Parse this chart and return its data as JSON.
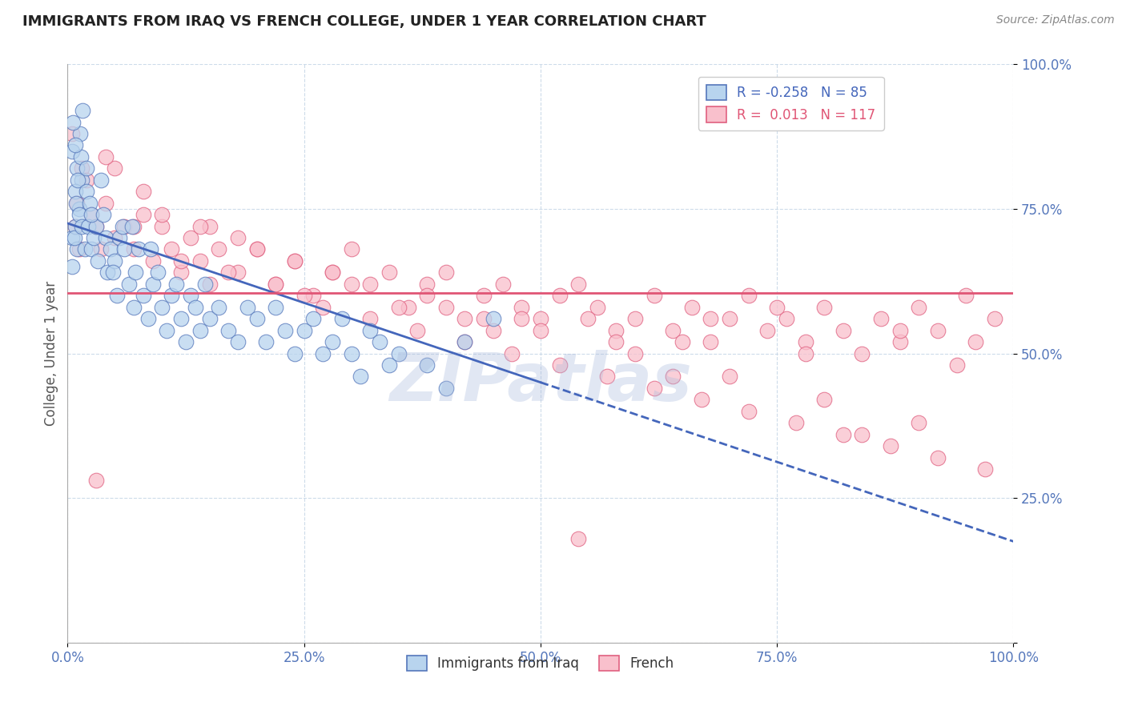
{
  "title": "IMMIGRANTS FROM IRAQ VS FRENCH COLLEGE, UNDER 1 YEAR CORRELATION CHART",
  "source_text": "Source: ZipAtlas.com",
  "ylabel": "College, Under 1 year",
  "legend_labels": [
    "Immigrants from Iraq",
    "French"
  ],
  "R_iraq": -0.258,
  "N_iraq": 85,
  "R_french": 0.013,
  "N_french": 117,
  "iraq_fill_color": "#b8d4ee",
  "iraq_edge_color": "#5577bb",
  "french_fill_color": "#f9c0cc",
  "french_edge_color": "#e06080",
  "iraq_line_color": "#4466bb",
  "french_line_color": "#e05575",
  "grid_color": "#c8d8e8",
  "title_color": "#222222",
  "source_color": "#888888",
  "tick_color": "#5577bb",
  "ylabel_color": "#555555",
  "watermark_color": "#aabbdd",
  "figsize": [
    14.06,
    8.92
  ],
  "dpi": 100,
  "xlim": [
    0.0,
    1.0
  ],
  "ylim": [
    0.0,
    1.0
  ],
  "iraq_scatter_x": [
    0.005,
    0.008,
    0.01,
    0.012,
    0.015,
    0.005,
    0.008,
    0.01,
    0.013,
    0.016,
    0.005,
    0.007,
    0.009,
    0.011,
    0.014,
    0.006,
    0.008,
    0.012,
    0.015,
    0.018,
    0.02,
    0.022,
    0.025,
    0.02,
    0.023,
    0.028,
    0.03,
    0.032,
    0.035,
    0.025,
    0.04,
    0.042,
    0.045,
    0.038,
    0.05,
    0.052,
    0.048,
    0.055,
    0.058,
    0.06,
    0.065,
    0.07,
    0.072,
    0.075,
    0.068,
    0.08,
    0.085,
    0.09,
    0.095,
    0.088,
    0.1,
    0.105,
    0.11,
    0.115,
    0.12,
    0.125,
    0.13,
    0.135,
    0.14,
    0.145,
    0.15,
    0.16,
    0.17,
    0.18,
    0.19,
    0.2,
    0.21,
    0.22,
    0.23,
    0.24,
    0.25,
    0.26,
    0.27,
    0.28,
    0.29,
    0.3,
    0.31,
    0.32,
    0.33,
    0.34,
    0.35,
    0.38,
    0.4,
    0.42,
    0.45
  ],
  "iraq_scatter_y": [
    0.7,
    0.72,
    0.68,
    0.75,
    0.8,
    0.85,
    0.78,
    0.82,
    0.88,
    0.92,
    0.65,
    0.7,
    0.76,
    0.8,
    0.84,
    0.9,
    0.86,
    0.74,
    0.72,
    0.68,
    0.78,
    0.72,
    0.68,
    0.82,
    0.76,
    0.7,
    0.72,
    0.66,
    0.8,
    0.74,
    0.7,
    0.64,
    0.68,
    0.74,
    0.66,
    0.6,
    0.64,
    0.7,
    0.72,
    0.68,
    0.62,
    0.58,
    0.64,
    0.68,
    0.72,
    0.6,
    0.56,
    0.62,
    0.64,
    0.68,
    0.58,
    0.54,
    0.6,
    0.62,
    0.56,
    0.52,
    0.6,
    0.58,
    0.54,
    0.62,
    0.56,
    0.58,
    0.54,
    0.52,
    0.58,
    0.56,
    0.52,
    0.58,
    0.54,
    0.5,
    0.54,
    0.56,
    0.5,
    0.52,
    0.56,
    0.5,
    0.46,
    0.54,
    0.52,
    0.48,
    0.5,
    0.48,
    0.44,
    0.52,
    0.56
  ],
  "french_scatter_x": [
    0.005,
    0.01,
    0.015,
    0.008,
    0.012,
    0.02,
    0.025,
    0.03,
    0.035,
    0.04,
    0.05,
    0.06,
    0.07,
    0.08,
    0.09,
    0.1,
    0.11,
    0.12,
    0.13,
    0.14,
    0.15,
    0.16,
    0.18,
    0.2,
    0.22,
    0.24,
    0.26,
    0.28,
    0.3,
    0.32,
    0.34,
    0.36,
    0.38,
    0.4,
    0.42,
    0.44,
    0.46,
    0.48,
    0.5,
    0.52,
    0.54,
    0.56,
    0.58,
    0.6,
    0.62,
    0.64,
    0.66,
    0.68,
    0.7,
    0.72,
    0.74,
    0.76,
    0.78,
    0.8,
    0.82,
    0.84,
    0.86,
    0.88,
    0.9,
    0.92,
    0.94,
    0.96,
    0.98,
    0.15,
    0.25,
    0.35,
    0.45,
    0.55,
    0.65,
    0.75,
    0.08,
    0.18,
    0.28,
    0.38,
    0.48,
    0.58,
    0.68,
    0.78,
    0.88,
    0.05,
    0.1,
    0.2,
    0.3,
    0.4,
    0.5,
    0.6,
    0.7,
    0.8,
    0.9,
    0.95,
    0.12,
    0.22,
    0.32,
    0.42,
    0.52,
    0.62,
    0.72,
    0.82,
    0.92,
    0.03,
    0.07,
    0.17,
    0.27,
    0.37,
    0.47,
    0.57,
    0.67,
    0.77,
    0.87,
    0.97,
    0.04,
    0.14,
    0.24,
    0.44,
    0.64,
    0.84,
    0.54
  ],
  "french_scatter_y": [
    0.88,
    0.76,
    0.82,
    0.72,
    0.68,
    0.8,
    0.74,
    0.72,
    0.68,
    0.76,
    0.7,
    0.72,
    0.68,
    0.74,
    0.66,
    0.72,
    0.68,
    0.64,
    0.7,
    0.66,
    0.72,
    0.68,
    0.64,
    0.68,
    0.62,
    0.66,
    0.6,
    0.64,
    0.68,
    0.62,
    0.64,
    0.58,
    0.62,
    0.64,
    0.56,
    0.6,
    0.62,
    0.58,
    0.56,
    0.6,
    0.62,
    0.58,
    0.54,
    0.56,
    0.6,
    0.54,
    0.58,
    0.52,
    0.56,
    0.6,
    0.54,
    0.56,
    0.52,
    0.58,
    0.54,
    0.5,
    0.56,
    0.52,
    0.58,
    0.54,
    0.48,
    0.52,
    0.56,
    0.62,
    0.6,
    0.58,
    0.54,
    0.56,
    0.52,
    0.58,
    0.78,
    0.7,
    0.64,
    0.6,
    0.56,
    0.52,
    0.56,
    0.5,
    0.54,
    0.82,
    0.74,
    0.68,
    0.62,
    0.58,
    0.54,
    0.5,
    0.46,
    0.42,
    0.38,
    0.6,
    0.66,
    0.62,
    0.56,
    0.52,
    0.48,
    0.44,
    0.4,
    0.36,
    0.32,
    0.28,
    0.72,
    0.64,
    0.58,
    0.54,
    0.5,
    0.46,
    0.42,
    0.38,
    0.34,
    0.3,
    0.84,
    0.72,
    0.66,
    0.56,
    0.46,
    0.36,
    0.18
  ],
  "iraq_trend_start_y": 0.725,
  "iraq_trend_end_y": 0.175,
  "french_trend_y": 0.605
}
